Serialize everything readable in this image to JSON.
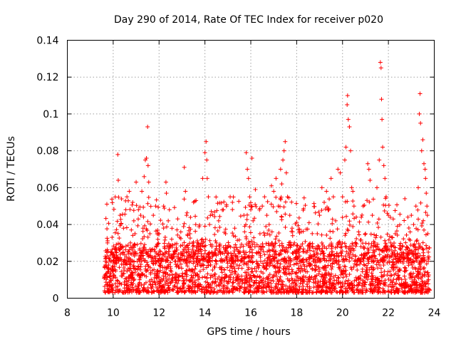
{
  "chart_data": {
    "type": "scatter",
    "title": "Day 290 of 2014, Rate Of TEC Index for receiver p020",
    "xlabel": "GPS time / hours",
    "ylabel": "ROTI / TECUs",
    "xlim": [
      8,
      24
    ],
    "ylim": [
      0,
      0.14
    ],
    "xticks": [
      8,
      10,
      12,
      14,
      16,
      18,
      20,
      22,
      24
    ],
    "yticks": [
      0,
      0.02,
      0.04,
      0.06,
      0.08,
      0.1,
      0.12,
      0.14
    ],
    "xtick_labels": [
      "8",
      "10",
      "12",
      "14",
      "16",
      "18",
      "20",
      "22",
      "24"
    ],
    "ytick_labels": [
      "0",
      "0.02",
      "0.04",
      "0.06",
      "0.08",
      "0.1",
      "0.12",
      "0.14"
    ],
    "grid": true,
    "marker": "+",
    "color": "#ff0000",
    "series": [
      {
        "name": "ROTI",
        "points": [
          [
            9.7,
            0.012
          ],
          [
            9.75,
            0.03
          ],
          [
            9.8,
            0.018
          ],
          [
            9.85,
            0.009
          ],
          [
            9.9,
            0.025
          ],
          [
            9.95,
            0.033
          ],
          [
            10.0,
            0.015
          ],
          [
            10.05,
            0.022
          ],
          [
            10.1,
            0.008
          ],
          [
            10.15,
            0.019
          ],
          [
            10.2,
            0.078
          ],
          [
            10.22,
            0.064
          ],
          [
            10.3,
            0.045
          ],
          [
            10.35,
            0.028
          ],
          [
            10.4,
            0.012
          ],
          [
            10.45,
            0.038
          ],
          [
            10.5,
            0.021
          ],
          [
            10.55,
            0.048
          ],
          [
            10.6,
            0.055
          ],
          [
            10.65,
            0.016
          ],
          [
            10.7,
            0.058
          ],
          [
            10.75,
            0.03
          ],
          [
            10.8,
            0.011
          ],
          [
            10.85,
            0.052
          ],
          [
            10.9,
            0.042
          ],
          [
            10.95,
            0.035
          ],
          [
            11.0,
            0.063
          ],
          [
            11.05,
            0.02
          ],
          [
            11.1,
            0.048
          ],
          [
            11.15,
            0.01
          ],
          [
            11.2,
            0.045
          ],
          [
            11.25,
            0.058
          ],
          [
            11.3,
            0.038
          ],
          [
            11.35,
            0.066
          ],
          [
            11.4,
            0.075
          ],
          [
            11.45,
            0.076
          ],
          [
            11.5,
            0.093
          ],
          [
            11.52,
            0.072
          ],
          [
            11.55,
            0.063
          ],
          [
            11.6,
            0.035
          ],
          [
            11.65,
            0.022
          ],
          [
            11.7,
            0.015
          ],
          [
            11.75,
            0.045
          ],
          [
            11.8,
            0.011
          ],
          [
            11.85,
            0.05
          ],
          [
            11.9,
            0.028
          ],
          [
            11.95,
            0.012
          ],
          [
            12.0,
            0.035
          ],
          [
            12.05,
            0.009
          ],
          [
            12.1,
            0.02
          ],
          [
            12.2,
            0.05
          ],
          [
            12.25,
            0.027
          ],
          [
            12.3,
            0.063
          ],
          [
            12.32,
            0.057
          ],
          [
            12.4,
            0.042
          ],
          [
            12.45,
            0.048
          ],
          [
            12.5,
            0.015
          ],
          [
            12.55,
            0.032
          ],
          [
            12.6,
            0.011
          ],
          [
            12.7,
            0.025
          ],
          [
            12.8,
            0.018
          ],
          [
            12.9,
            0.033
          ],
          [
            13.0,
            0.012
          ],
          [
            13.1,
            0.071
          ],
          [
            13.15,
            0.058
          ],
          [
            13.2,
            0.045
          ],
          [
            13.25,
            0.034
          ],
          [
            13.3,
            0.022
          ],
          [
            13.35,
            0.035
          ],
          [
            13.4,
            0.015
          ],
          [
            13.5,
            0.025
          ],
          [
            13.6,
            0.04
          ],
          [
            13.7,
            0.012
          ],
          [
            13.8,
            0.028
          ],
          [
            13.9,
            0.065
          ],
          [
            14.0,
            0.079
          ],
          [
            14.05,
            0.085
          ],
          [
            14.08,
            0.075
          ],
          [
            14.1,
            0.065
          ],
          [
            14.15,
            0.055
          ],
          [
            14.2,
            0.04
          ],
          [
            14.25,
            0.018
          ],
          [
            14.3,
            0.025
          ],
          [
            14.4,
            0.012
          ],
          [
            14.5,
            0.03
          ],
          [
            14.6,
            0.042
          ],
          [
            14.7,
            0.02
          ],
          [
            14.8,
            0.048
          ],
          [
            14.9,
            0.035
          ],
          [
            15.0,
            0.028
          ],
          [
            15.1,
            0.055
          ],
          [
            15.2,
            0.052
          ],
          [
            15.3,
            0.038
          ],
          [
            15.4,
            0.018
          ],
          [
            15.5,
            0.025
          ],
          [
            15.6,
            0.012
          ],
          [
            15.7,
            0.045
          ],
          [
            15.8,
            0.079
          ],
          [
            15.85,
            0.07
          ],
          [
            15.9,
            0.065
          ],
          [
            15.95,
            0.055
          ],
          [
            16.0,
            0.048
          ],
          [
            16.05,
            0.076
          ],
          [
            16.1,
            0.042
          ],
          [
            16.15,
            0.03
          ],
          [
            16.2,
            0.059
          ],
          [
            16.25,
            0.02
          ],
          [
            16.3,
            0.012
          ],
          [
            16.4,
            0.035
          ],
          [
            16.5,
            0.05
          ],
          [
            16.6,
            0.055
          ],
          [
            16.7,
            0.045
          ],
          [
            16.8,
            0.04
          ],
          [
            16.9,
            0.061
          ],
          [
            17.0,
            0.058
          ],
          [
            17.1,
            0.065
          ],
          [
            17.2,
            0.05
          ],
          [
            17.3,
            0.07
          ],
          [
            17.35,
            0.062
          ],
          [
            17.4,
            0.075
          ],
          [
            17.45,
            0.08
          ],
          [
            17.5,
            0.085
          ],
          [
            17.55,
            0.068
          ],
          [
            17.6,
            0.055
          ],
          [
            17.7,
            0.045
          ],
          [
            17.8,
            0.038
          ],
          [
            17.9,
            0.03
          ],
          [
            18.0,
            0.022
          ],
          [
            18.1,
            0.015
          ],
          [
            18.2,
            0.02
          ],
          [
            18.3,
            0.012
          ],
          [
            18.4,
            0.025
          ],
          [
            18.5,
            0.01
          ],
          [
            18.6,
            0.018
          ],
          [
            18.7,
            0.028
          ],
          [
            18.8,
            0.015
          ],
          [
            18.9,
            0.035
          ],
          [
            19.0,
            0.045
          ],
          [
            19.1,
            0.06
          ],
          [
            19.2,
            0.052
          ],
          [
            19.3,
            0.058
          ],
          [
            19.4,
            0.048
          ],
          [
            19.5,
            0.065
          ],
          [
            19.6,
            0.055
          ],
          [
            19.7,
            0.042
          ],
          [
            19.8,
            0.07
          ],
          [
            19.9,
            0.068
          ],
          [
            20.0,
            0.055
          ],
          [
            20.1,
            0.075
          ],
          [
            20.15,
            0.082
          ],
          [
            20.2,
            0.105
          ],
          [
            20.22,
            0.11
          ],
          [
            20.25,
            0.097
          ],
          [
            20.3,
            0.093
          ],
          [
            20.35,
            0.08
          ],
          [
            20.4,
            0.06
          ],
          [
            20.45,
            0.058
          ],
          [
            20.5,
            0.05
          ],
          [
            20.6,
            0.044
          ],
          [
            20.7,
            0.036
          ],
          [
            20.8,
            0.028
          ],
          [
            20.9,
            0.05
          ],
          [
            21.0,
            0.035
          ],
          [
            21.1,
            0.073
          ],
          [
            21.15,
            0.07
          ],
          [
            21.2,
            0.064
          ],
          [
            21.3,
            0.045
          ],
          [
            21.4,
            0.03
          ],
          [
            21.5,
            0.06
          ],
          [
            21.6,
            0.075
          ],
          [
            21.65,
            0.128
          ],
          [
            21.68,
            0.125
          ],
          [
            21.7,
            0.108
          ],
          [
            21.72,
            0.097
          ],
          [
            21.75,
            0.082
          ],
          [
            21.8,
            0.072
          ],
          [
            21.85,
            0.065
          ],
          [
            21.9,
            0.055
          ],
          [
            22.0,
            0.045
          ],
          [
            22.1,
            0.03
          ],
          [
            22.2,
            0.025
          ],
          [
            22.3,
            0.035
          ],
          [
            22.4,
            0.02
          ],
          [
            22.5,
            0.015
          ],
          [
            22.6,
            0.028
          ],
          [
            22.7,
            0.012
          ],
          [
            22.8,
            0.02
          ],
          [
            22.9,
            0.032
          ],
          [
            23.0,
            0.045
          ],
          [
            23.1,
            0.04
          ],
          [
            23.2,
            0.05
          ],
          [
            23.3,
            0.06
          ],
          [
            23.35,
            0.1
          ],
          [
            23.38,
            0.111
          ],
          [
            23.4,
            0.095
          ],
          [
            23.45,
            0.08
          ],
          [
            23.5,
            0.086
          ],
          [
            23.55,
            0.073
          ],
          [
            23.6,
            0.07
          ],
          [
            23.62,
            0.065
          ],
          [
            23.65,
            0.057
          ],
          [
            23.68,
            0.05
          ],
          [
            23.7,
            0.045
          ],
          [
            23.72,
            0.035
          ],
          [
            23.74,
            0.025
          ],
          [
            23.75,
            0.01
          ]
        ]
      }
    ],
    "baseline_band": {
      "description": "dense cloud of low ROTI values",
      "x_range": [
        9.6,
        23.8
      ],
      "y_range": [
        0.003,
        0.03
      ],
      "note": "points densely cover this band across the observation window"
    }
  }
}
